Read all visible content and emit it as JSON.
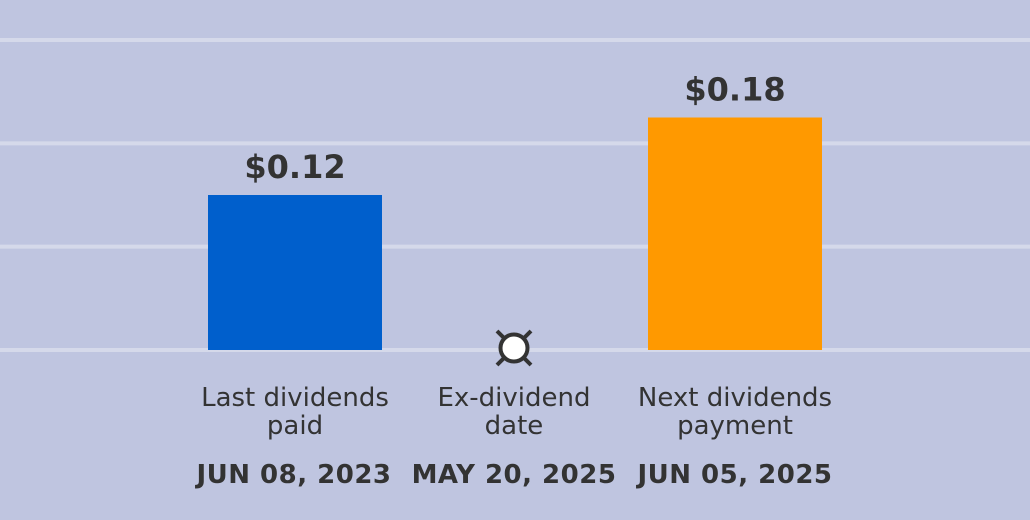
{
  "colors": {
    "background": "#bfc5e0",
    "grid": "#d5d9ea",
    "text": "#333333",
    "last_bar": "#005fcc",
    "next_bar": "#ff9900"
  },
  "chart_data": {
    "type": "bar",
    "title": "",
    "xlabel": "",
    "ylabel": "",
    "grid": true,
    "ylim": [
      0,
      0.24
    ],
    "categories": [
      "Last dividends paid",
      "Ex-dividend date",
      "Next dividends payment"
    ],
    "category_lines": [
      [
        "Last dividends",
        "paid"
      ],
      [
        "Ex-dividend",
        "date"
      ],
      [
        "Next dividends",
        "payment"
      ]
    ],
    "values": [
      0.12,
      null,
      0.18
    ],
    "value_labels": [
      "$0.12",
      "",
      "$0.18"
    ],
    "dates": [
      "JUN 08, 2023",
      "MAY 20, 2025",
      "JUN 05, 2025"
    ],
    "bar_colors": [
      "#005fcc",
      null,
      "#ff9900"
    ],
    "marker_icon": "ex-dividend-marker-icon"
  }
}
